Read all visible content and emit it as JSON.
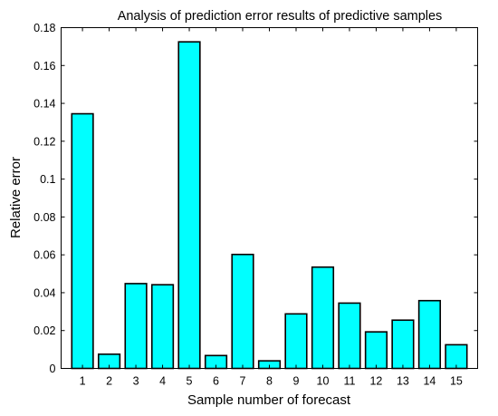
{
  "chart_data": {
    "type": "bar",
    "title": "Analysis of prediction error results of predictive samples",
    "xlabel": "Sample number of forecast",
    "ylabel": "Relative error",
    "categories": [
      "1",
      "2",
      "3",
      "4",
      "5",
      "6",
      "7",
      "8",
      "9",
      "10",
      "11",
      "12",
      "13",
      "14",
      "15"
    ],
    "values": [
      0.1345,
      0.0075,
      0.0448,
      0.0442,
      0.1725,
      0.0068,
      0.0602,
      0.004,
      0.0288,
      0.0535,
      0.0345,
      0.0193,
      0.0255,
      0.0358,
      0.0125
    ],
    "ylim": [
      0,
      0.18
    ],
    "yticks": [
      "0",
      "0.02",
      "0.04",
      "0.06",
      "0.08",
      "0.1",
      "0.12",
      "0.14",
      "0.16",
      "0.18"
    ],
    "grid": false,
    "bar_color": "#00ffff",
    "edge_color": "#000000"
  }
}
